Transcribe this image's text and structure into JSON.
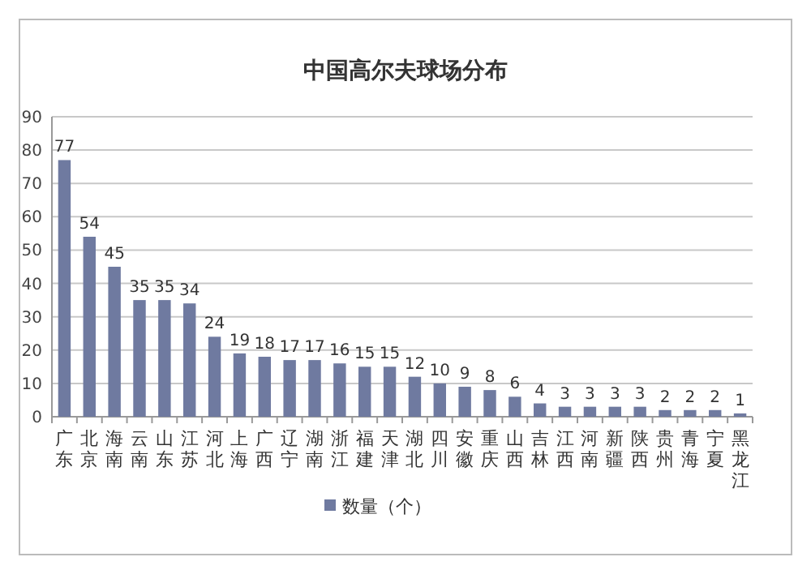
{
  "chart_data": {
    "type": "bar",
    "title": "中国高尔夫球场分布",
    "categories": [
      "广东",
      "北京",
      "海南",
      "云南",
      "山东",
      "江苏",
      "河北",
      "上海",
      "广西",
      "辽宁",
      "湖南",
      "浙江",
      "福建",
      "天津",
      "湖北",
      "四川",
      "安徽",
      "重庆",
      "山西",
      "吉林",
      "江西",
      "河南",
      "新疆",
      "陕西",
      "贵州",
      "青海",
      "宁夏",
      "黑龙江"
    ],
    "series": [
      {
        "name": "数量（个）",
        "color": "#6f7aa0",
        "values": [
          77,
          54,
          45,
          35,
          35,
          34,
          24,
          19,
          18,
          17,
          17,
          16,
          15,
          15,
          12,
          10,
          9,
          8,
          6,
          4,
          3,
          3,
          3,
          3,
          2,
          2,
          2,
          1
        ]
      }
    ],
    "ylim": [
      0,
      90
    ],
    "yticks": [
      0,
      10,
      20,
      30,
      40,
      50,
      60,
      70,
      80,
      90
    ],
    "grid": "y",
    "data_labels": true,
    "legend": "bottom"
  }
}
